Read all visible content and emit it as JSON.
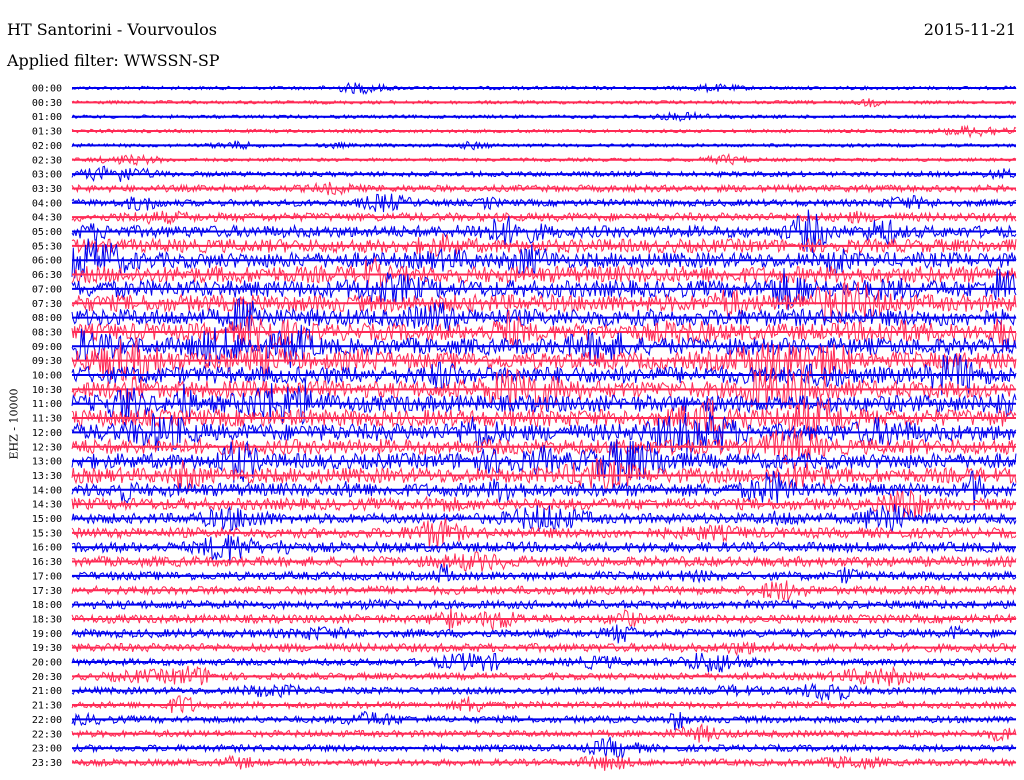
{
  "header": {
    "title": "HT Santorini - Vourvoulos",
    "date": "2015-11-21",
    "filter_label": "Applied filter: WWSSN-SP",
    "channel_label": "EHZ - 10000"
  },
  "chart_data": {
    "type": "line",
    "title": "HT Santorini - Vourvoulos",
    "subtitle": "Applied filter: WWSSN-SP",
    "ylabel": "EHZ - 10000",
    "xlabel": "",
    "colors": {
      "even_row": "#0000ee",
      "odd_row": "#ff2a55"
    },
    "rows": [
      {
        "time": "00:00",
        "activity": 1
      },
      {
        "time": "00:30",
        "activity": 1
      },
      {
        "time": "01:00",
        "activity": 1
      },
      {
        "time": "01:30",
        "activity": 1
      },
      {
        "time": "02:00",
        "activity": 1
      },
      {
        "time": "02:30",
        "activity": 1
      },
      {
        "time": "03:00",
        "activity": 2
      },
      {
        "time": "03:30",
        "activity": 3
      },
      {
        "time": "04:00",
        "activity": 3
      },
      {
        "time": "04:30",
        "activity": 4
      },
      {
        "time": "05:00",
        "activity": 6
      },
      {
        "time": "05:30",
        "activity": 7
      },
      {
        "time": "06:00",
        "activity": 8
      },
      {
        "time": "06:30",
        "activity": 9
      },
      {
        "time": "07:00",
        "activity": 9
      },
      {
        "time": "07:30",
        "activity": 9
      },
      {
        "time": "08:00",
        "activity": 9
      },
      {
        "time": "08:30",
        "activity": 9
      },
      {
        "time": "09:00",
        "activity": 9
      },
      {
        "time": "09:30",
        "activity": 9
      },
      {
        "time": "10:00",
        "activity": 9
      },
      {
        "time": "10:30",
        "activity": 9
      },
      {
        "time": "11:00",
        "activity": 9
      },
      {
        "time": "11:30",
        "activity": 9
      },
      {
        "time": "12:00",
        "activity": 9
      },
      {
        "time": "12:30",
        "activity": 8
      },
      {
        "time": "13:00",
        "activity": 8
      },
      {
        "time": "13:30",
        "activity": 8
      },
      {
        "time": "14:00",
        "activity": 7
      },
      {
        "time": "14:30",
        "activity": 6
      },
      {
        "time": "15:00",
        "activity": 5
      },
      {
        "time": "15:30",
        "activity": 5
      },
      {
        "time": "16:00",
        "activity": 5
      },
      {
        "time": "16:30",
        "activity": 5
      },
      {
        "time": "17:00",
        "activity": 4
      },
      {
        "time": "17:30",
        "activity": 4
      },
      {
        "time": "18:00",
        "activity": 4
      },
      {
        "time": "18:30",
        "activity": 4
      },
      {
        "time": "19:00",
        "activity": 4
      },
      {
        "time": "19:30",
        "activity": 4
      },
      {
        "time": "20:00",
        "activity": 3
      },
      {
        "time": "20:30",
        "activity": 3
      },
      {
        "time": "21:00",
        "activity": 3
      },
      {
        "time": "21:30",
        "activity": 3
      },
      {
        "time": "22:00",
        "activity": 3
      },
      {
        "time": "22:30",
        "activity": 3
      },
      {
        "time": "23:00",
        "activity": 3
      },
      {
        "time": "23:30",
        "activity": 3
      }
    ]
  }
}
